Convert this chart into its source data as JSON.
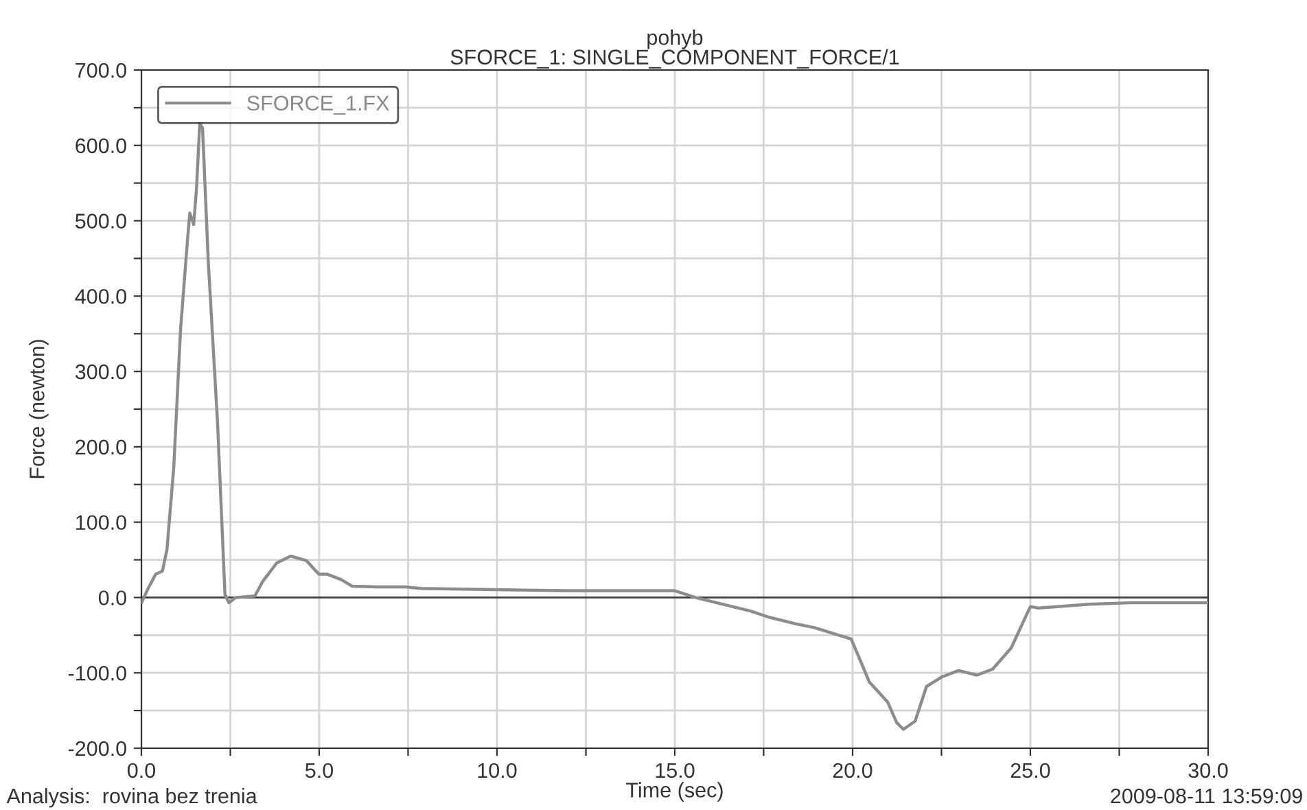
{
  "chart_data": {
    "type": "line",
    "title": "pohyb\nSFORCE_1: SINGLE_COMPONENT_FORCE/1",
    "xlabel": "Time (sec)",
    "ylabel": "Force (newton)",
    "annotations": [
      "Analysis:  rovina bez trenia",
      "2009-08-11 13:59:09"
    ],
    "series": [
      {
        "name": "SFORCE_1.FX",
        "color": "#8c8c8c",
        "x": [
          0.01,
          0.2,
          0.4,
          0.59,
          0.72,
          0.91,
          1.1,
          1.3,
          1.36,
          1.47,
          1.55,
          1.64,
          1.72,
          1.88,
          2.14,
          2.35,
          2.46,
          2.65,
          3.19,
          3.42,
          3.81,
          4.2,
          4.64,
          4.99,
          5.22,
          5.61,
          5.93,
          6.64,
          7.41,
          7.86,
          10.56,
          11.98,
          15.0,
          15.58,
          17.13,
          17.64,
          18.41,
          18.93,
          19.96,
          20.15,
          20.47,
          20.99,
          21.24,
          21.43,
          21.76,
          22.08,
          22.53,
          22.98,
          23.5,
          23.94,
          24.46,
          25.0,
          25.23,
          26.65,
          27.8,
          30.0
        ],
        "values": [
          -6,
          13,
          31,
          35,
          64,
          173,
          355,
          477,
          510,
          495,
          543,
          629,
          623,
          446,
          233,
          4,
          -7,
          0,
          2,
          22,
          46,
          55,
          49,
          31,
          31,
          24,
          15,
          14,
          14,
          12,
          10,
          9,
          9,
          0,
          -18,
          -26,
          -35,
          -40,
          -55,
          -76,
          -112,
          -139,
          -166,
          -175,
          -164,
          -118,
          -105,
          -97,
          -103,
          -95,
          -67,
          -12,
          -14,
          -9,
          -7,
          -7
        ]
      }
    ],
    "xlim": [
      0,
      30
    ],
    "xticks": [
      {
        "value": 0,
        "label": "0.0"
      },
      {
        "value": 2.5,
        "label": null
      },
      {
        "value": 5,
        "label": "5.0"
      },
      {
        "value": 7.5,
        "label": null
      },
      {
        "value": 10,
        "label": "10.0"
      },
      {
        "value": 12.5,
        "label": null
      },
      {
        "value": 15,
        "label": "15.0"
      },
      {
        "value": 17.5,
        "label": null
      },
      {
        "value": 20,
        "label": "20.0"
      },
      {
        "value": 22.5,
        "label": null
      },
      {
        "value": 25,
        "label": "25.0"
      },
      {
        "value": 27.5,
        "label": null
      },
      {
        "value": 30,
        "label": "30.0"
      }
    ],
    "ylim": [
      -200,
      700
    ],
    "yticks": [
      {
        "value": -200,
        "label": "-200.0"
      },
      {
        "value": -150,
        "label": null
      },
      {
        "value": -100,
        "label": "-100.0"
      },
      {
        "value": -50,
        "label": null
      },
      {
        "value": 0,
        "label": "0.0"
      },
      {
        "value": 50,
        "label": null
      },
      {
        "value": 100,
        "label": "100.0"
      },
      {
        "value": 150,
        "label": null
      },
      {
        "value": 200,
        "label": "200.0"
      },
      {
        "value": 250,
        "label": null
      },
      {
        "value": 300,
        "label": "300.0"
      },
      {
        "value": 350,
        "label": null
      },
      {
        "value": 400,
        "label": "400.0"
      },
      {
        "value": 450,
        "label": null
      },
      {
        "value": 500,
        "label": "500.0"
      },
      {
        "value": 550,
        "label": null
      },
      {
        "value": 600,
        "label": "600.0"
      },
      {
        "value": 650,
        "label": null
      },
      {
        "value": 700,
        "label": "700.0"
      }
    ],
    "ref_lines": [
      {
        "axis": "y",
        "value": 0,
        "label": null,
        "color": "#404040"
      }
    ],
    "grid": true,
    "legend": "top left",
    "marker": "none",
    "line_style": "solid"
  }
}
